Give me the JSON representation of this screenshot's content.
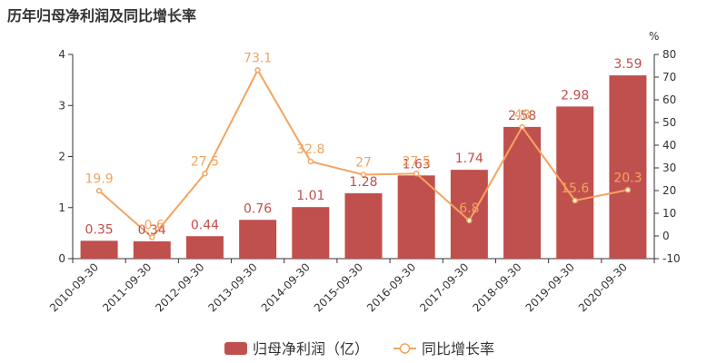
{
  "title": "历年归母净利润及同比增长率",
  "colors": {
    "bar": "#c0504d",
    "line": "#f4a460",
    "axis": "#333333",
    "grid": "#dddddd"
  },
  "chart_data": {
    "type": "bar",
    "title": "历年归母净利润及同比增长率",
    "categories": [
      "2010-09-30",
      "2011-09-30",
      "2012-09-30",
      "2013-09-30",
      "2014-09-30",
      "2015-09-30",
      "2016-09-30",
      "2017-09-30",
      "2018-09-30",
      "2019-09-30",
      "2020-09-30"
    ],
    "series": [
      {
        "name": "归母净利润（亿）",
        "type": "bar",
        "axis": "left",
        "values": [
          0.35,
          0.34,
          0.44,
          0.76,
          1.01,
          1.28,
          1.63,
          1.74,
          2.58,
          2.98,
          3.59
        ],
        "labels": [
          "0.35",
          "0.34",
          "0.44",
          "0.76",
          "1.01",
          "1.28",
          "1.63",
          "1.74",
          "2.58",
          "2.98",
          "3.59"
        ]
      },
      {
        "name": "同比增长率",
        "type": "line",
        "axis": "right",
        "values": [
          19.9,
          -0.6,
          27.5,
          73.1,
          32.8,
          27,
          27.5,
          6.8,
          48,
          15.6,
          20.3
        ],
        "labels": [
          "19.9",
          "-0.6",
          "27.5",
          "73.1",
          "32.8",
          "27",
          "27.5",
          "6.8",
          "48",
          "15.6",
          "20.3"
        ]
      }
    ],
    "y_left": {
      "min": 0,
      "max": 4,
      "ticks": [
        0,
        1,
        2,
        3,
        4
      ],
      "tick_labels": [
        "0",
        "1",
        "2",
        "3",
        "4"
      ]
    },
    "y_right": {
      "min": -10,
      "max": 80,
      "unit": "%",
      "ticks": [
        -10,
        0,
        10,
        20,
        30,
        40,
        50,
        60,
        70,
        80
      ],
      "tick_labels": [
        "-10",
        "0",
        "10",
        "20",
        "30",
        "40",
        "50",
        "60",
        "70",
        "80"
      ]
    },
    "grid": false,
    "legend_position": "bottom"
  }
}
